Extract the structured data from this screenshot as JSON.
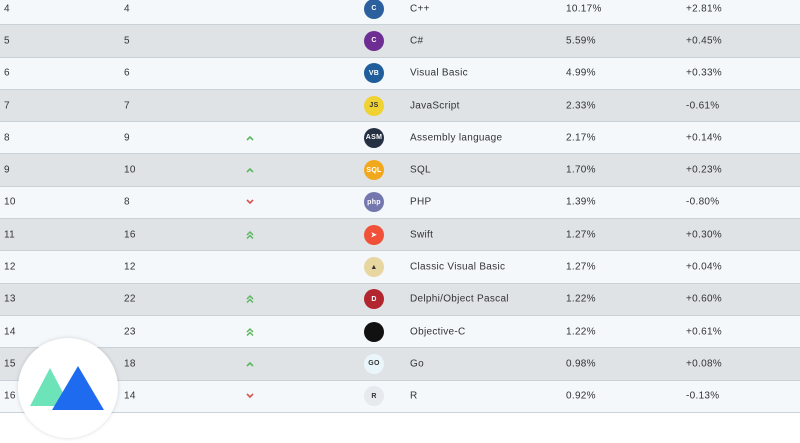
{
  "rows": [
    {
      "cur": "4",
      "prev": "4",
      "change": "",
      "lang": "C++",
      "icon": "cplusplus-icon",
      "icon_text": "C",
      "icon_color": "#2b5f9e",
      "rating": "10.17%",
      "delta": "+2.81%"
    },
    {
      "cur": "5",
      "prev": "5",
      "change": "",
      "lang": "C#",
      "icon": "csharp-icon",
      "icon_text": "C",
      "icon_color": "#6d2d92",
      "rating": "5.59%",
      "delta": "+0.45%"
    },
    {
      "cur": "6",
      "prev": "6",
      "change": "",
      "lang": "Visual Basic",
      "icon": "visual-basic-icon",
      "icon_text": "VB",
      "icon_color": "#1f5d9b",
      "rating": "4.99%",
      "delta": "+0.33%"
    },
    {
      "cur": "7",
      "prev": "7",
      "change": "",
      "lang": "JavaScript",
      "icon": "javascript-icon",
      "icon_text": "JS",
      "icon_color": "#f0d232",
      "rating": "2.33%",
      "delta": "-0.61%"
    },
    {
      "cur": "8",
      "prev": "9",
      "change": "up",
      "lang": "Assembly language",
      "icon": "assembly-icon",
      "icon_text": "ASM",
      "icon_color": "#253043",
      "rating": "2.17%",
      "delta": "+0.14%"
    },
    {
      "cur": "9",
      "prev": "10",
      "change": "up",
      "lang": "SQL",
      "icon": "sql-icon",
      "icon_text": "SQL",
      "icon_color": "#f2a81d",
      "rating": "1.70%",
      "delta": "+0.23%"
    },
    {
      "cur": "10",
      "prev": "8",
      "change": "down",
      "lang": "PHP",
      "icon": "php-icon",
      "icon_text": "php",
      "icon_color": "#7377ad",
      "rating": "1.39%",
      "delta": "-0.80%"
    },
    {
      "cur": "11",
      "prev": "16",
      "change": "up2",
      "lang": "Swift",
      "icon": "swift-icon",
      "icon_text": "➤",
      "icon_color": "#f05138",
      "rating": "1.27%",
      "delta": "+0.30%"
    },
    {
      "cur": "12",
      "prev": "12",
      "change": "",
      "lang": "Classic Visual Basic",
      "icon": "classic-visual-basic-icon",
      "icon_text": "▲",
      "icon_color": "#e8d6a0",
      "rating": "1.27%",
      "delta": "+0.04%"
    },
    {
      "cur": "13",
      "prev": "22",
      "change": "up2",
      "lang": "Delphi/Object Pascal",
      "icon": "delphi-icon",
      "icon_text": "D",
      "icon_color": "#b2272f",
      "rating": "1.22%",
      "delta": "+0.60%"
    },
    {
      "cur": "14",
      "prev": "23",
      "change": "up2",
      "lang": "Objective-C",
      "icon": "objective-c-icon",
      "icon_text": "",
      "icon_color": "#111111",
      "rating": "1.22%",
      "delta": "+0.61%"
    },
    {
      "cur": "15",
      "prev": "18",
      "change": "up",
      "lang": "Go",
      "icon": "go-icon",
      "icon_text": "GO",
      "icon_color": "#eaf6fb",
      "rating": "0.98%",
      "delta": "+0.08%"
    },
    {
      "cur": "16",
      "prev": "14",
      "change": "down",
      "lang": "R",
      "icon": "r-icon",
      "icon_text": "R",
      "icon_color": "#e6e9ee",
      "rating": "0.92%",
      "delta": "-0.13%"
    }
  ],
  "colors": {
    "up": "#5cb85c",
    "down": "#d9534f",
    "logo_green": "#5ce0b0",
    "logo_blue": "#1f6bf0"
  }
}
